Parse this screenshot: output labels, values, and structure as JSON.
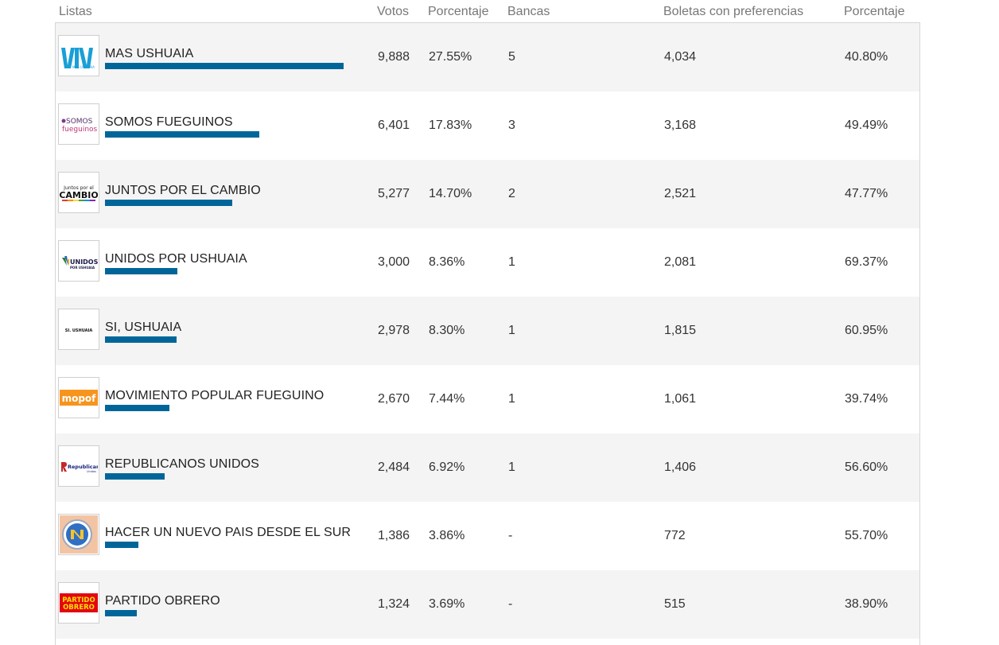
{
  "columns": {
    "listas": "Listas",
    "votos": "Votos",
    "porcentaje": "Porcentaje",
    "bancas": "Bancas",
    "boletas": "Boletas con preferencias",
    "porcentaje2": "Porcentaje"
  },
  "bar_color": "#006699",
  "max_votes": 9888,
  "rows": [
    {
      "name": "MAS USHUAIA",
      "votos": "9,888",
      "votes_value": 9888,
      "porcentaje": "27.55%",
      "bancas": "5",
      "boletas": "4,034",
      "porcentaje2": "40.80%",
      "logo_icon": "mas-ushuaia-logo-icon",
      "logo_text": "MAS USHUAIA"
    },
    {
      "name": "SOMOS FUEGUINOS",
      "votos": "6,401",
      "votes_value": 6401,
      "porcentaje": "17.83%",
      "bancas": "3",
      "boletas": "3,168",
      "porcentaje2": "49.49%",
      "logo_icon": "somos-fueguinos-logo-icon",
      "logo_text": "SOMOS",
      "logo_text2": "fueguinos"
    },
    {
      "name": "JUNTOS POR EL CAMBIO",
      "votos": "5,277",
      "votes_value": 5277,
      "porcentaje": "14.70%",
      "bancas": "2",
      "boletas": "2,521",
      "porcentaje2": "47.77%",
      "logo_icon": "juntos-por-el-cambio-logo-icon",
      "logo_text": "Juntos por el",
      "logo_text2": "CAMBIO"
    },
    {
      "name": "UNIDOS POR USHUAIA",
      "votos": "3,000",
      "votes_value": 3000,
      "porcentaje": "8.36%",
      "bancas": "1",
      "boletas": "2,081",
      "porcentaje2": "69.37%",
      "logo_icon": "unidos-por-ushuaia-logo-icon",
      "logo_text": "UNIDOS",
      "logo_text2": "POR USHUAIA"
    },
    {
      "name": "SI, USHUAIA",
      "votos": "2,978",
      "votes_value": 2978,
      "porcentaje": "8.30%",
      "bancas": "1",
      "boletas": "1,815",
      "porcentaje2": "60.95%",
      "logo_icon": "si-ushuaia-logo-icon",
      "logo_text": "SI. USHUAIA"
    },
    {
      "name": "MOVIMIENTO POPULAR FUEGUINO",
      "votos": "2,670",
      "votes_value": 2670,
      "porcentaje": "7.44%",
      "bancas": "1",
      "boletas": "1,061",
      "porcentaje2": "39.74%",
      "logo_icon": "mopof-logo-icon",
      "logo_text": "mopof"
    },
    {
      "name": "REPUBLICANOS UNIDOS",
      "votos": "2,484",
      "votes_value": 2484,
      "porcentaje": "6.92%",
      "bancas": "1",
      "boletas": "1,406",
      "porcentaje2": "56.60%",
      "logo_icon": "republicanos-unidos-logo-icon",
      "logo_text": "Republicanos",
      "logo_text2": "Unidos"
    },
    {
      "name": "HACER UN NUEVO PAIS DESDE EL SUR",
      "votos": "1,386",
      "votes_value": 1386,
      "porcentaje": "3.86%",
      "bancas": "-",
      "boletas": "772",
      "porcentaje2": "55.70%",
      "logo_icon": "hacer-nuevo-pais-logo-icon"
    },
    {
      "name": "PARTIDO OBRERO",
      "votos": "1,324",
      "votes_value": 1324,
      "porcentaje": "3.69%",
      "bancas": "-",
      "boletas": "515",
      "porcentaje2": "38.90%",
      "logo_icon": "partido-obrero-logo-icon",
      "logo_text": "PARTIDO",
      "logo_text2": "OBRERO"
    }
  ]
}
